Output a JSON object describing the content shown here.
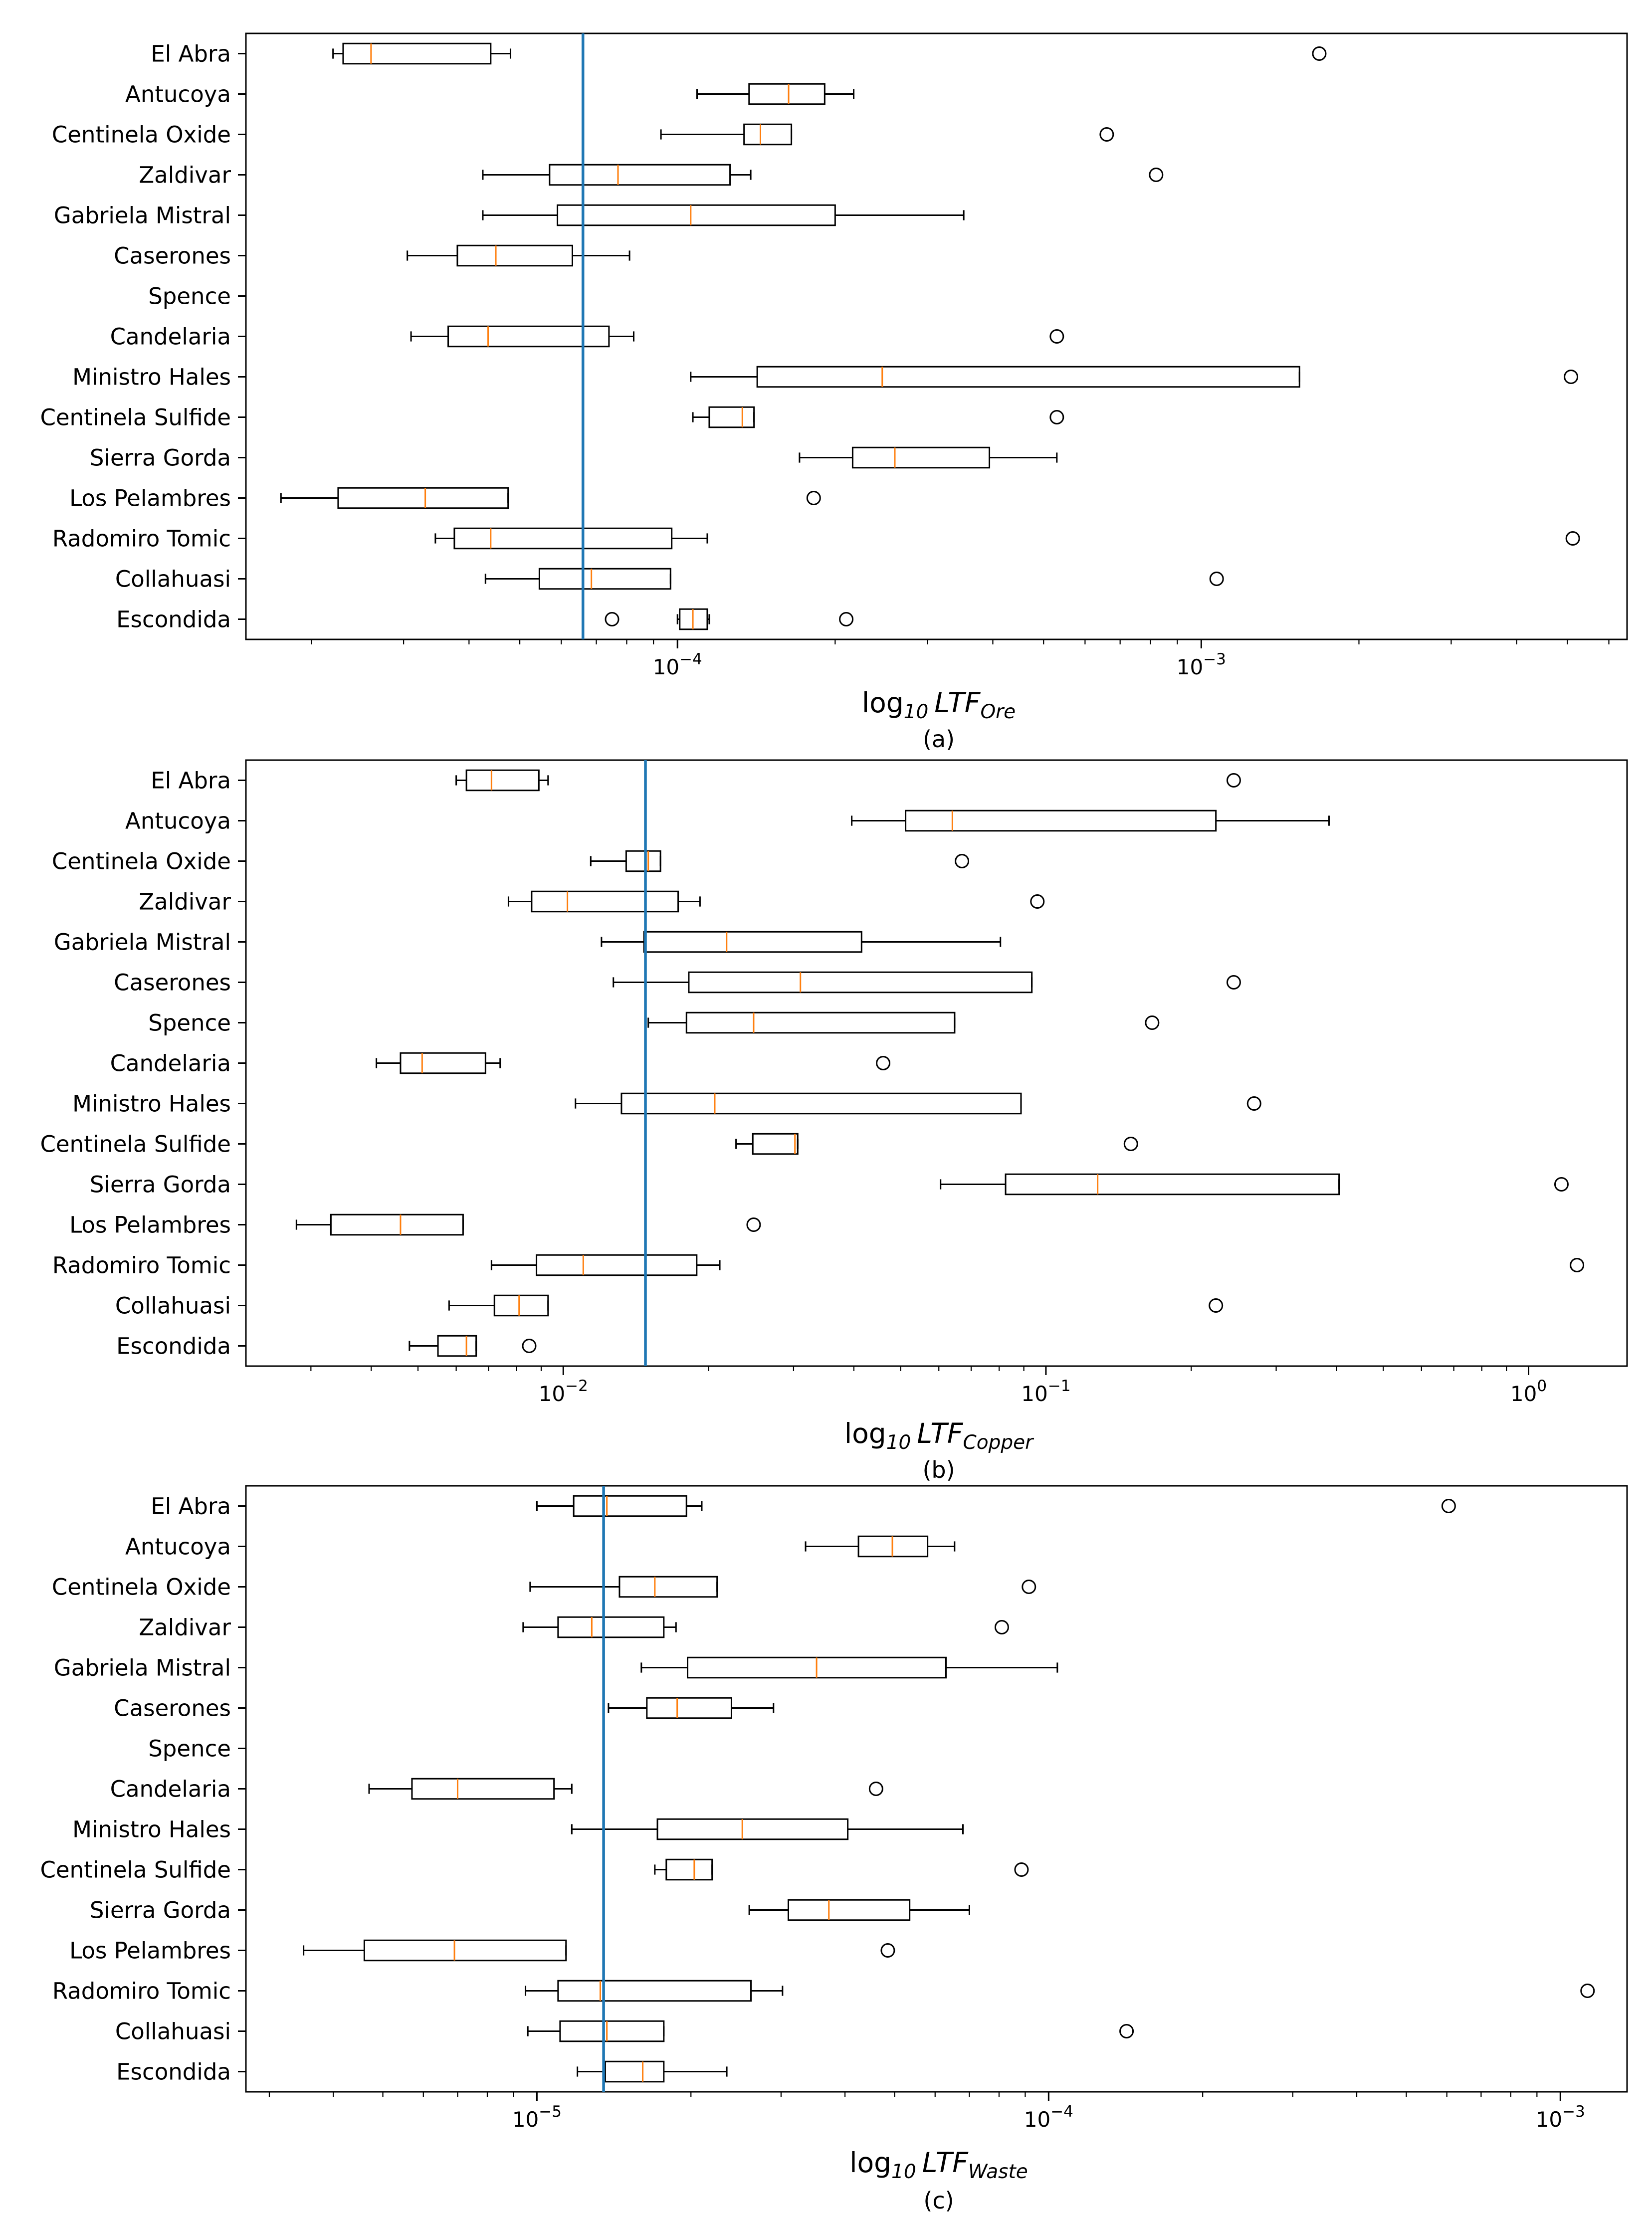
{
  "chart_data": [
    {
      "type": "box",
      "panel_label": "(a)",
      "xlabel": {
        "prefix": "log",
        "sub": "10",
        "var": "LTF",
        "var_sub": "Ore"
      },
      "xscale": "log",
      "xlim": [
        1.5e-05,
        0.0065
      ],
      "xticks": [
        {
          "value": 0.0001,
          "mant": "10",
          "exp": "−4"
        },
        {
          "value": 0.001,
          "mant": "10",
          "exp": "−3"
        }
      ],
      "reference_line": 6.6e-05,
      "categories": [
        "El Abra",
        "Antucoya",
        "Centinela Oxide",
        "Zaldivar",
        "Gabriela Mistral",
        "Caserones",
        "Spence",
        "Candelaria",
        "Ministro Hales",
        "Centinela Sulfide",
        "Sierra Gorda",
        "Los Pelambres",
        "Radomiro Tomic",
        "Collahuasi",
        "Escondida"
      ],
      "boxes": [
        {
          "category": "El Abra",
          "whislo": 2.2e-05,
          "q1": 2.3e-05,
          "med": 2.6e-05,
          "q3": 4.4e-05,
          "whishi": 4.8e-05,
          "fliers": [
            0.00168
          ]
        },
        {
          "category": "Antucoya",
          "whislo": 0.000109,
          "q1": 0.000137,
          "med": 0.000163,
          "q3": 0.000191,
          "whishi": 0.000217,
          "fliers": []
        },
        {
          "category": "Centinela Oxide",
          "whislo": 9.3e-05,
          "q1": 0.000134,
          "med": 0.000144,
          "q3": 0.000165,
          "whishi": 0.000165,
          "fliers": [
            0.00066
          ]
        },
        {
          "category": "Zaldivar",
          "whislo": 4.25e-05,
          "q1": 5.7e-05,
          "med": 7.7e-05,
          "q3": 0.000126,
          "whishi": 0.000138,
          "fliers": [
            0.00082
          ]
        },
        {
          "category": "Gabriela Mistral",
          "whislo": 4.25e-05,
          "q1": 5.9e-05,
          "med": 0.000106,
          "q3": 0.0002,
          "whishi": 0.000352,
          "fliers": []
        },
        {
          "category": "Caserones",
          "whislo": 3.05e-05,
          "q1": 3.8e-05,
          "med": 4.5e-05,
          "q3": 6.3e-05,
          "whishi": 8.1e-05,
          "fliers": []
        },
        {
          "category": "Spence",
          "whislo": null,
          "q1": null,
          "med": null,
          "q3": null,
          "whishi": null,
          "fliers": []
        },
        {
          "category": "Candelaria",
          "whislo": 3.1e-05,
          "q1": 3.65e-05,
          "med": 4.35e-05,
          "q3": 7.4e-05,
          "whishi": 8.25e-05,
          "fliers": [
            0.00053
          ]
        },
        {
          "category": "Ministro Hales",
          "whislo": 0.000106,
          "q1": 0.000142,
          "med": 0.000246,
          "q3": 0.00154,
          "whishi": 0.00154,
          "fliers": [
            0.00508
          ]
        },
        {
          "category": "Centinela Sulfide",
          "whislo": 0.000107,
          "q1": 0.000115,
          "med": 0.000133,
          "q3": 0.00014,
          "whishi": 0.00014,
          "fliers": [
            0.00053
          ]
        },
        {
          "category": "Sierra Gorda",
          "whislo": 0.000171,
          "q1": 0.000216,
          "med": 0.00026,
          "q3": 0.000394,
          "whishi": 0.00053,
          "fliers": []
        },
        {
          "category": "Los Pelambres",
          "whislo": 1.75e-05,
          "q1": 2.25e-05,
          "med": 3.3e-05,
          "q3": 4.75e-05,
          "whishi": 4.75e-05,
          "fliers": [
            0.000182
          ]
        },
        {
          "category": "Radomiro Tomic",
          "whislo": 3.45e-05,
          "q1": 3.75e-05,
          "med": 4.4e-05,
          "q3": 9.75e-05,
          "whishi": 0.000114,
          "fliers": [
            0.00512
          ]
        },
        {
          "category": "Collahuasi",
          "whislo": 4.3e-05,
          "q1": 5.45e-05,
          "med": 6.85e-05,
          "q3": 9.7e-05,
          "whishi": 9.7e-05,
          "fliers": [
            0.00107
          ]
        },
        {
          "category": "Escondida",
          "whislo": 0.0001,
          "q1": 0.000101,
          "med": 0.000107,
          "q3": 0.000114,
          "whishi": 0.000115,
          "fliers": [
            7.5e-05,
            0.00021
          ]
        }
      ]
    },
    {
      "type": "box",
      "panel_label": "(b)",
      "xlabel": {
        "prefix": "log",
        "sub": "10",
        "var": "LTF",
        "var_sub": "Copper"
      },
      "xscale": "log",
      "xlim": [
        0.0022,
        1.6
      ],
      "xticks": [
        {
          "value": 0.01,
          "mant": "10",
          "exp": "−2"
        },
        {
          "value": 0.1,
          "mant": "10",
          "exp": "−1"
        },
        {
          "value": 1,
          "mant": "10",
          "exp": "0"
        }
      ],
      "reference_line": 0.0148,
      "categories": [
        "El Abra",
        "Antucoya",
        "Centinela Oxide",
        "Zaldivar",
        "Gabriela Mistral",
        "Caserones",
        "Spence",
        "Candelaria",
        "Ministro Hales",
        "Centinela Sulfide",
        "Sierra Gorda",
        "Los Pelambres",
        "Radomiro Tomic",
        "Collahuasi",
        "Escondida"
      ],
      "boxes": [
        {
          "category": "El Abra",
          "whislo": 0.006,
          "q1": 0.0063,
          "med": 0.0071,
          "q3": 0.0089,
          "whishi": 0.0093,
          "fliers": [
            0.245
          ]
        },
        {
          "category": "Antucoya",
          "whislo": 0.0396,
          "q1": 0.0512,
          "med": 0.064,
          "q3": 0.225,
          "whishi": 0.386,
          "fliers": []
        },
        {
          "category": "Centinela Oxide",
          "whislo": 0.0114,
          "q1": 0.0135,
          "med": 0.015,
          "q3": 0.0159,
          "whishi": 0.0159,
          "fliers": [
            0.067
          ]
        },
        {
          "category": "Zaldivar",
          "whislo": 0.0077,
          "q1": 0.0086,
          "med": 0.0102,
          "q3": 0.0173,
          "whishi": 0.0192,
          "fliers": [
            0.096
          ]
        },
        {
          "category": "Gabriela Mistral",
          "whislo": 0.012,
          "q1": 0.0147,
          "med": 0.0218,
          "q3": 0.0415,
          "whishi": 0.0805,
          "fliers": []
        },
        {
          "category": "Caserones",
          "whislo": 0.0127,
          "q1": 0.0182,
          "med": 0.031,
          "q3": 0.0935,
          "whishi": 0.0935,
          "fliers": [
            0.245
          ]
        },
        {
          "category": "Spence",
          "whislo": 0.015,
          "q1": 0.018,
          "med": 0.0248,
          "q3": 0.0647,
          "whishi": 0.0647,
          "fliers": [
            0.166
          ]
        },
        {
          "category": "Candelaria",
          "whislo": 0.0041,
          "q1": 0.0046,
          "med": 0.0051,
          "q3": 0.0069,
          "whishi": 0.0074,
          "fliers": [
            0.046
          ]
        },
        {
          "category": "Ministro Hales",
          "whislo": 0.0106,
          "q1": 0.0132,
          "med": 0.0206,
          "q3": 0.0888,
          "whishi": 0.0888,
          "fliers": [
            0.27
          ]
        },
        {
          "category": "Centinela Sulfide",
          "whislo": 0.0228,
          "q1": 0.0247,
          "med": 0.0302,
          "q3": 0.0306,
          "whishi": 0.0306,
          "fliers": [
            0.15
          ]
        },
        {
          "category": "Sierra Gorda",
          "whislo": 0.0605,
          "q1": 0.0825,
          "med": 0.128,
          "q3": 0.405,
          "whishi": 0.405,
          "fliers": [
            1.17
          ]
        },
        {
          "category": "Los Pelambres",
          "whislo": 0.0028,
          "q1": 0.0033,
          "med": 0.0046,
          "q3": 0.0062,
          "whishi": 0.0062,
          "fliers": [
            0.0248
          ]
        },
        {
          "category": "Radomiro Tomic",
          "whislo": 0.0071,
          "q1": 0.0088,
          "med": 0.011,
          "q3": 0.0189,
          "whishi": 0.0211,
          "fliers": [
            1.26
          ]
        },
        {
          "category": "Collahuasi",
          "whislo": 0.0058,
          "q1": 0.0072,
          "med": 0.0081,
          "q3": 0.0093,
          "whishi": 0.0093,
          "fliers": [
            0.225
          ]
        },
        {
          "category": "Escondida",
          "whislo": 0.0048,
          "q1": 0.0055,
          "med": 0.0063,
          "q3": 0.0066,
          "whishi": 0.0066,
          "fliers": [
            0.0085
          ]
        }
      ]
    },
    {
      "type": "box",
      "panel_label": "(c)",
      "xlabel": {
        "prefix": "log",
        "sub": "10",
        "var": "LTF",
        "var_sub": "Waste"
      },
      "xscale": "log",
      "xlim": [
        2.7e-06,
        0.00135
      ],
      "xticks": [
        {
          "value": 1e-05,
          "mant": "10",
          "exp": "−5"
        },
        {
          "value": 0.0001,
          "mant": "10",
          "exp": "−4"
        },
        {
          "value": 0.001,
          "mant": "10",
          "exp": "−3"
        }
      ],
      "reference_line": 1.35e-05,
      "categories": [
        "El Abra",
        "Antucoya",
        "Centinela Oxide",
        "Zaldivar",
        "Gabriela Mistral",
        "Caserones",
        "Spence",
        "Candelaria",
        "Ministro Hales",
        "Centinela Sulfide",
        "Sierra Gorda",
        "Los Pelambres",
        "Radomiro Tomic",
        "Collahuasi",
        "Escondida"
      ],
      "boxes": [
        {
          "category": "El Abra",
          "whislo": 1e-05,
          "q1": 1.18e-05,
          "med": 1.37e-05,
          "q3": 1.96e-05,
          "whishi": 2.1e-05,
          "fliers": [
            0.000605
          ]
        },
        {
          "category": "Antucoya",
          "whislo": 3.35e-05,
          "q1": 4.25e-05,
          "med": 4.95e-05,
          "q3": 5.8e-05,
          "whishi": 6.55e-05,
          "fliers": []
        },
        {
          "category": "Centinela Oxide",
          "whislo": 9.7e-06,
          "q1": 1.45e-05,
          "med": 1.7e-05,
          "q3": 2.25e-05,
          "whishi": 2.25e-05,
          "fliers": [
            9.15e-05
          ]
        },
        {
          "category": "Zaldivar",
          "whislo": 9.4e-06,
          "q1": 1.1e-05,
          "med": 1.28e-05,
          "q3": 1.77e-05,
          "whishi": 1.87e-05,
          "fliers": [
            8.1e-05
          ]
        },
        {
          "category": "Gabriela Mistral",
          "whislo": 1.6e-05,
          "q1": 1.97e-05,
          "med": 3.52e-05,
          "q3": 6.3e-05,
          "whishi": 0.000104,
          "fliers": []
        },
        {
          "category": "Caserones",
          "whislo": 1.38e-05,
          "q1": 1.64e-05,
          "med": 1.88e-05,
          "q3": 2.4e-05,
          "whishi": 2.9e-05,
          "fliers": []
        },
        {
          "category": "Spence",
          "whislo": null,
          "q1": null,
          "med": null,
          "q3": null,
          "whishi": null,
          "fliers": []
        },
        {
          "category": "Candelaria",
          "whislo": 4.7e-06,
          "q1": 5.7e-06,
          "med": 7e-06,
          "q3": 1.08e-05,
          "whishi": 1.17e-05,
          "fliers": [
            4.6e-05
          ]
        },
        {
          "category": "Ministro Hales",
          "whislo": 1.17e-05,
          "q1": 1.72e-05,
          "med": 2.52e-05,
          "q3": 4.05e-05,
          "whishi": 6.8e-05,
          "fliers": []
        },
        {
          "category": "Centinela Sulfide",
          "whislo": 1.7e-05,
          "q1": 1.79e-05,
          "med": 2.03e-05,
          "q3": 2.2e-05,
          "whishi": 2.2e-05,
          "fliers": [
            8.85e-05
          ]
        },
        {
          "category": "Sierra Gorda",
          "whislo": 2.6e-05,
          "q1": 3.1e-05,
          "med": 3.72e-05,
          "q3": 5.35e-05,
          "whishi": 7e-05,
          "fliers": []
        },
        {
          "category": "Los Pelambres",
          "whislo": 3.5e-06,
          "q1": 4.6e-06,
          "med": 6.9e-06,
          "q3": 1.14e-05,
          "whishi": 1.14e-05,
          "fliers": [
            4.85e-05
          ]
        },
        {
          "category": "Radomiro Tomic",
          "whislo": 9.5e-06,
          "q1": 1.1e-05,
          "med": 1.33e-05,
          "q3": 2.62e-05,
          "whishi": 3.02e-05,
          "fliers": [
            0.00113
          ]
        },
        {
          "category": "Collahuasi",
          "whislo": 9.6e-06,
          "q1": 1.11e-05,
          "med": 1.37e-05,
          "q3": 1.77e-05,
          "whishi": 1.77e-05,
          "fliers": [
            0.000142
          ]
        },
        {
          "category": "Escondida",
          "whislo": 1.2e-05,
          "q1": 1.36e-05,
          "med": 1.61e-05,
          "q3": 1.77e-05,
          "whishi": 2.35e-05,
          "fliers": []
        }
      ]
    }
  ],
  "colors": {
    "box": "#000000",
    "median": "#ff7f0e",
    "reference_line": "#1f77b4",
    "background": "#ffffff"
  }
}
